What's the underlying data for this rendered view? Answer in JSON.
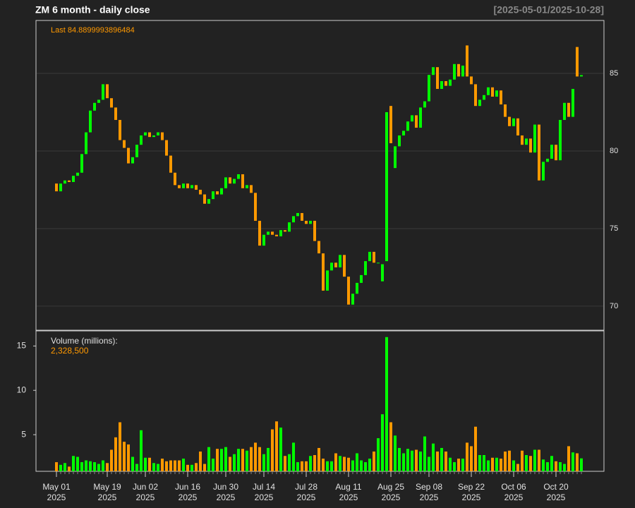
{
  "chart_data": [
    {
      "type": "candlestick",
      "title": "ZM  6 month - daily close",
      "subtitle": "[2025-05-01/2025-10-28]",
      "annotation_label": "Last",
      "x": [
        "2025-05-01",
        "2025-05-02",
        "2025-05-05",
        "2025-05-06",
        "2025-05-07",
        "2025-05-08",
        "2025-05-09",
        "2025-05-12",
        "2025-05-13",
        "2025-05-14",
        "2025-05-15",
        "2025-05-16",
        "2025-05-19",
        "2025-05-20",
        "2025-05-21",
        "2025-05-22",
        "2025-05-23",
        "2025-05-27",
        "2025-05-28",
        "2025-05-29",
        "2025-05-30",
        "2025-06-02",
        "2025-06-03",
        "2025-06-04",
        "2025-06-05",
        "2025-06-06",
        "2025-06-09",
        "2025-06-10",
        "2025-06-11",
        "2025-06-12",
        "2025-06-13",
        "2025-06-16",
        "2025-06-17",
        "2025-06-18",
        "2025-06-20",
        "2025-06-23",
        "2025-06-24",
        "2025-06-25",
        "2025-06-26",
        "2025-06-27",
        "2025-06-30",
        "2025-07-01",
        "2025-07-02",
        "2025-07-03",
        "2025-07-07",
        "2025-07-08",
        "2025-07-09",
        "2025-07-10",
        "2025-07-11",
        "2025-07-14",
        "2025-07-15",
        "2025-07-16",
        "2025-07-17",
        "2025-07-18",
        "2025-07-21",
        "2025-07-22",
        "2025-07-23",
        "2025-07-24",
        "2025-07-25",
        "2025-07-28",
        "2025-07-29",
        "2025-07-30",
        "2025-07-31",
        "2025-08-01",
        "2025-08-04",
        "2025-08-05",
        "2025-08-06",
        "2025-08-07",
        "2025-08-08",
        "2025-08-11",
        "2025-08-12",
        "2025-08-13",
        "2025-08-14",
        "2025-08-15",
        "2025-08-18",
        "2025-08-19",
        "2025-08-20",
        "2025-08-21",
        "2025-08-22",
        "2025-08-25",
        "2025-08-26",
        "2025-08-27",
        "2025-08-28",
        "2025-08-29",
        "2025-09-02",
        "2025-09-03",
        "2025-09-04",
        "2025-09-05",
        "2025-09-08",
        "2025-09-09",
        "2025-09-10",
        "2025-09-11",
        "2025-09-12",
        "2025-09-15",
        "2025-09-16",
        "2025-09-17",
        "2025-09-18",
        "2025-09-19",
        "2025-09-22",
        "2025-09-23",
        "2025-09-24",
        "2025-09-25",
        "2025-09-26",
        "2025-09-29",
        "2025-09-30",
        "2025-10-01",
        "2025-10-02",
        "2025-10-03",
        "2025-10-06",
        "2025-10-07",
        "2025-10-08",
        "2025-10-09",
        "2025-10-10",
        "2025-10-13",
        "2025-10-14",
        "2025-10-15",
        "2025-10-16",
        "2025-10-17",
        "2025-10-20",
        "2025-10-21",
        "2025-10-22",
        "2025-10-23",
        "2025-10-24",
        "2025-10-27",
        "2025-10-28"
      ],
      "open": [
        77.9,
        77.4,
        77.9,
        78.1,
        78.0,
        78.4,
        78.6,
        79.8,
        81.2,
        82.6,
        83.1,
        83.3,
        84.3,
        83.4,
        82.8,
        82.0,
        80.7,
        80.2,
        79.2,
        79.6,
        80.4,
        81.0,
        81.2,
        80.9,
        81.0,
        81.2,
        80.7,
        79.7,
        78.6,
        77.8,
        77.6,
        77.9,
        77.6,
        77.8,
        77.5,
        77.2,
        76.6,
        76.9,
        77.4,
        77.2,
        77.6,
        78.3,
        77.9,
        78.2,
        78.5,
        77.6,
        77.8,
        77.3,
        75.5,
        73.9,
        74.6,
        74.8,
        74.6,
        74.5,
        74.9,
        74.8,
        75.4,
        75.8,
        76.0,
        75.5,
        75.3,
        75.5,
        74.2,
        73.4,
        71.0,
        72.3,
        72.8,
        72.5,
        73.3,
        71.9,
        70.1,
        70.8,
        71.5,
        72.0,
        72.9,
        73.5,
        72.8,
        71.6,
        72.9,
        82.9,
        78.9,
        80.3,
        81.0,
        81.3,
        81.9,
        82.3,
        81.5,
        82.8,
        83.2,
        84.9,
        85.4,
        84.0,
        84.5,
        84.2,
        84.6,
        85.6,
        84.8,
        86.8,
        84.8,
        84.3,
        82.9,
        83.3,
        83.6,
        84.1,
        83.5,
        83.9,
        83.0,
        82.2,
        81.6,
        82.1,
        81.0,
        80.4,
        80.8,
        79.9,
        81.7,
        78.1,
        79.3,
        79.5,
        80.4,
        79.4,
        82.0,
        83.1,
        82.2,
        86.7,
        84.8
      ],
      "close": [
        77.4,
        77.9,
        78.1,
        78.0,
        78.4,
        78.6,
        79.8,
        81.2,
        82.6,
        83.1,
        83.3,
        84.3,
        83.4,
        82.8,
        82.0,
        80.7,
        80.2,
        79.2,
        79.6,
        80.4,
        81.0,
        81.2,
        80.9,
        81.0,
        81.2,
        80.7,
        79.7,
        78.6,
        77.8,
        77.6,
        77.9,
        77.6,
        77.8,
        77.5,
        77.2,
        76.6,
        76.9,
        77.4,
        77.2,
        77.6,
        78.3,
        77.9,
        78.2,
        78.5,
        77.6,
        77.8,
        77.3,
        75.5,
        73.9,
        74.6,
        74.8,
        74.6,
        74.5,
        74.9,
        74.8,
        75.4,
        75.8,
        76.0,
        75.5,
        75.3,
        75.5,
        74.2,
        73.4,
        71.0,
        72.3,
        72.8,
        72.5,
        73.3,
        71.9,
        70.1,
        70.8,
        71.5,
        72.0,
        72.9,
        73.5,
        72.8,
        72.8,
        72.7,
        82.5,
        80.5,
        80.3,
        81.0,
        81.3,
        81.9,
        82.3,
        81.5,
        82.8,
        83.2,
        84.9,
        85.4,
        84.0,
        84.5,
        84.2,
        84.6,
        85.6,
        84.8,
        85.5,
        84.8,
        84.3,
        82.9,
        83.3,
        83.6,
        84.1,
        83.5,
        83.9,
        83.0,
        82.2,
        81.6,
        82.1,
        81.0,
        80.4,
        80.8,
        79.9,
        81.7,
        78.1,
        79.3,
        79.5,
        80.4,
        79.4,
        82.0,
        83.1,
        82.2,
        84.0,
        84.8,
        84.8899993896484
      ],
      "up_color": "#00ff00",
      "down_color": "#ff9900",
      "ylim": [
        68.45,
        88.41
      ],
      "yticks": [
        70,
        75,
        80,
        85
      ],
      "grid": true,
      "xticks": [
        {
          "value": "2025-05-01",
          "label": "May 01",
          "year": "2025"
        },
        {
          "value": "2025-05-19",
          "label": "May 19",
          "year": "2025"
        },
        {
          "value": "2025-06-02",
          "label": "Jun 02",
          "year": "2025"
        },
        {
          "value": "2025-06-16",
          "label": "Jun 16",
          "year": "2025"
        },
        {
          "value": "2025-06-30",
          "label": "Jun 30",
          "year": "2025"
        },
        {
          "value": "2025-07-14",
          "label": "Jul 14",
          "year": "2025"
        },
        {
          "value": "2025-07-28",
          "label": "Jul 28",
          "year": "2025"
        },
        {
          "value": "2025-08-11",
          "label": "Aug 11",
          "year": "2025"
        },
        {
          "value": "2025-08-25",
          "label": "Aug 25",
          "year": "2025"
        },
        {
          "value": "2025-09-08",
          "label": "Sep 08",
          "year": "2025"
        },
        {
          "value": "2025-09-22",
          "label": "Sep 22",
          "year": "2025"
        },
        {
          "value": "2025-10-06",
          "label": "Oct 06",
          "year": "2025"
        },
        {
          "value": "2025-10-20",
          "label": "Oct 20",
          "year": "2025"
        }
      ]
    },
    {
      "type": "bar",
      "title": "Volume (millions):",
      "values": [
        1.9,
        1.6,
        1.8,
        1.4,
        2.6,
        2.5,
        1.9,
        2.1,
        2.0,
        1.9,
        1.7,
        2.1,
        1.8,
        3.3,
        4.7,
        6.4,
        4.2,
        3.9,
        2.5,
        1.7,
        5.5,
        2.4,
        2.4,
        1.8,
        1.7,
        2.3,
        2.0,
        2.1,
        2.1,
        2.1,
        2.3,
        1.6,
        1.6,
        1.8,
        3.1,
        1.7,
        3.6,
        2.3,
        3.4,
        3.4,
        3.6,
        2.5,
        2.8,
        3.4,
        3.4,
        3.2,
        3.6,
        4.1,
        3.6,
        2.8,
        3.5,
        5.6,
        6.5,
        5.8,
        2.6,
        2.8,
        4.1,
        1.9,
        2.0,
        2.0,
        2.6,
        2.7,
        3.5,
        2.3,
        2.0,
        2.0,
        2.9,
        2.6,
        2.5,
        2.4,
        2.1,
        2.9,
        2.1,
        1.9,
        2.3,
        3.1,
        4.6,
        7.3,
        16.0,
        6.4,
        4.9,
        3.5,
        2.9,
        3.4,
        3.2,
        3.3,
        3.1,
        4.8,
        2.5,
        4.0,
        3.1,
        3.5,
        3.1,
        2.4,
        1.9,
        2.3,
        2.3,
        4.1,
        3.7,
        5.9,
        2.7,
        2.7,
        2.1,
        2.4,
        2.4,
        2.3,
        3.1,
        3.2,
        2.1,
        1.7,
        3.2,
        2.7,
        2.6,
        3.3,
        3.3,
        2.2,
        1.9,
        2.6,
        2.0,
        1.9,
        1.7,
        3.7,
        3.0,
        2.9,
        2.3285
      ],
      "value_labels": [
        null,
        null,
        null,
        null,
        null,
        null,
        null,
        null,
        null,
        null,
        null,
        null,
        null,
        null,
        null,
        null,
        null,
        null,
        null,
        null,
        null,
        null,
        null,
        null,
        null,
        null,
        null,
        null,
        null,
        null,
        null,
        null,
        null,
        null,
        null,
        null,
        null,
        null,
        null,
        null,
        null,
        null,
        null,
        null,
        null,
        null,
        null,
        null,
        null,
        null,
        null,
        null,
        null,
        null,
        null,
        null,
        null,
        null,
        null,
        null,
        null,
        null,
        null,
        null,
        null,
        null,
        null,
        null,
        null,
        null,
        null,
        null,
        null,
        null,
        null,
        null,
        null,
        null,
        null,
        null,
        null,
        null,
        null,
        null,
        null,
        null,
        null,
        null,
        null,
        null,
        null,
        null,
        null,
        null,
        null,
        null,
        null,
        null,
        null,
        null,
        null,
        null,
        null,
        null,
        null,
        null,
        null,
        null,
        null,
        null,
        null,
        null,
        null,
        null,
        null,
        null,
        null,
        null,
        null,
        null,
        null,
        null,
        null,
        null,
        "2,328,500"
      ],
      "ylim": [
        0.87,
        16.7
      ],
      "yticks": [
        5,
        10,
        15
      ]
    }
  ]
}
